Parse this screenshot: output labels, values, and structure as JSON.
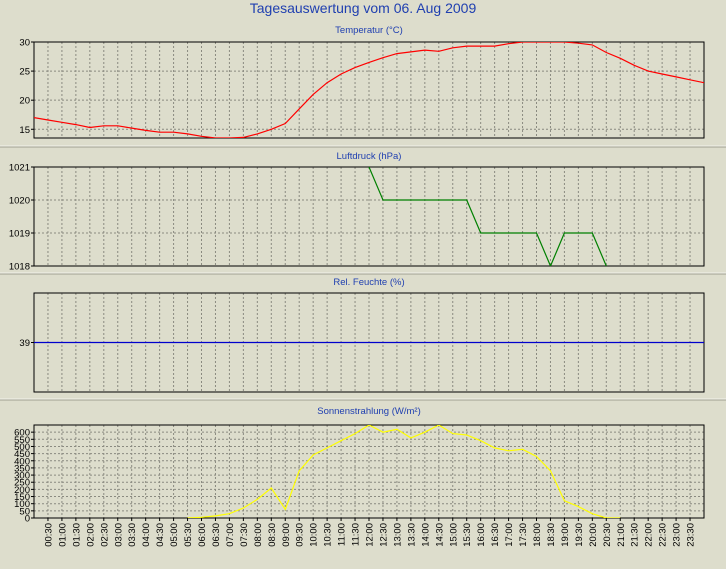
{
  "page_title": "Tagesauswertung vom 06. Aug 2009",
  "colors": {
    "background": "#ddddcc",
    "title": "#1f3fb0",
    "temperature": "#ff0000",
    "pressure": "#008000",
    "humidity": "#0000cc",
    "radiation": "#ffff00"
  },
  "x_tick_labels": [
    "00:30",
    "01:00",
    "01:30",
    "02:00",
    "02:30",
    "03:00",
    "03:30",
    "04:00",
    "04:30",
    "05:00",
    "05:30",
    "06:00",
    "06:30",
    "07:00",
    "07:30",
    "08:00",
    "08:30",
    "09:00",
    "09:30",
    "10:00",
    "10:30",
    "11:00",
    "11:30",
    "12:00",
    "12:30",
    "13:00",
    "13:30",
    "14:00",
    "14:30",
    "15:00",
    "15:30",
    "16:00",
    "16:30",
    "17:00",
    "17:30",
    "18:00",
    "18:30",
    "19:00",
    "19:30",
    "20:00",
    "20:30",
    "21:00",
    "21:30",
    "22:00",
    "22:30",
    "23:00",
    "23:30"
  ],
  "chart_data": [
    {
      "type": "line",
      "title": "Temperatur (°C)",
      "ylim": [
        13.5,
        30
      ],
      "yticks": [
        15,
        20,
        25,
        30
      ],
      "grid": true,
      "x": [
        0,
        0.5,
        1,
        1.5,
        2,
        2.5,
        3,
        3.5,
        4,
        4.5,
        5,
        5.5,
        6,
        6.5,
        7,
        7.5,
        8,
        8.5,
        9,
        9.5,
        10,
        10.5,
        11,
        11.5,
        12,
        12.5,
        13,
        13.5,
        14,
        14.5,
        15,
        15.5,
        16,
        16.5,
        17,
        17.5,
        18,
        18.5,
        19,
        19.5,
        20,
        20.5,
        21,
        21.5,
        22,
        22.5,
        23,
        23.5,
        24
      ],
      "series": [
        {
          "values": [
            17,
            16.6,
            16.2,
            15.8,
            15.3,
            15.6,
            15.6,
            15.2,
            14.8,
            14.5,
            14.5,
            14.2,
            13.8,
            13.5,
            13.5,
            13.6,
            14.2,
            15,
            16,
            18.5,
            21,
            23,
            24.5,
            25.6,
            26.5,
            27.3,
            28,
            28.3,
            28.6,
            28.4,
            29,
            29.3,
            29.3,
            29.3,
            29.7,
            30,
            30,
            30,
            30,
            29.8,
            29.5,
            28.2,
            27.2,
            26,
            25,
            24.5,
            24,
            23.5,
            23
          ]
        }
      ]
    },
    {
      "type": "line",
      "title": "Luftdruck (hPa)",
      "ylim": [
        1018,
        1021
      ],
      "yticks": [
        1018,
        1019,
        1020,
        1021
      ],
      "grid": true,
      "x": [
        12,
        12.5,
        15,
        15.5,
        16,
        18,
        18.5,
        19,
        19.5,
        20,
        20.5
      ],
      "series": [
        {
          "values": [
            1021,
            1020,
            1020,
            1020,
            1019,
            1019,
            1018,
            1019,
            1019,
            1019,
            1018
          ]
        }
      ]
    },
    {
      "type": "line",
      "title": "Rel. Feuchte (%)",
      "ylim": [
        38,
        40
      ],
      "yticks": [
        39
      ],
      "grid": true,
      "x": [
        0,
        24
      ],
      "series": [
        {
          "values": [
            39,
            39
          ]
        }
      ]
    },
    {
      "type": "line",
      "title": "Sonnenstrahlung (W/m²)",
      "ylim": [
        0,
        650
      ],
      "yticks": [
        0,
        50,
        100,
        150,
        200,
        250,
        300,
        350,
        400,
        450,
        500,
        550,
        600
      ],
      "grid": true,
      "x": [
        5.5,
        6,
        6.5,
        7,
        7.5,
        8,
        8.5,
        9,
        9.5,
        10,
        10.5,
        11,
        11.5,
        12,
        12.5,
        13,
        13.5,
        14,
        14.5,
        15,
        15.5,
        16,
        16.5,
        17,
        17.5,
        18,
        18.5,
        19,
        19.5,
        20,
        20.5,
        21
      ],
      "series": [
        {
          "values": [
            0,
            5,
            15,
            30,
            70,
            130,
            210,
            60,
            330,
            440,
            490,
            540,
            590,
            650,
            600,
            620,
            560,
            600,
            650,
            590,
            580,
            540,
            490,
            470,
            480,
            430,
            330,
            120,
            80,
            30,
            0,
            0
          ]
        }
      ]
    }
  ]
}
